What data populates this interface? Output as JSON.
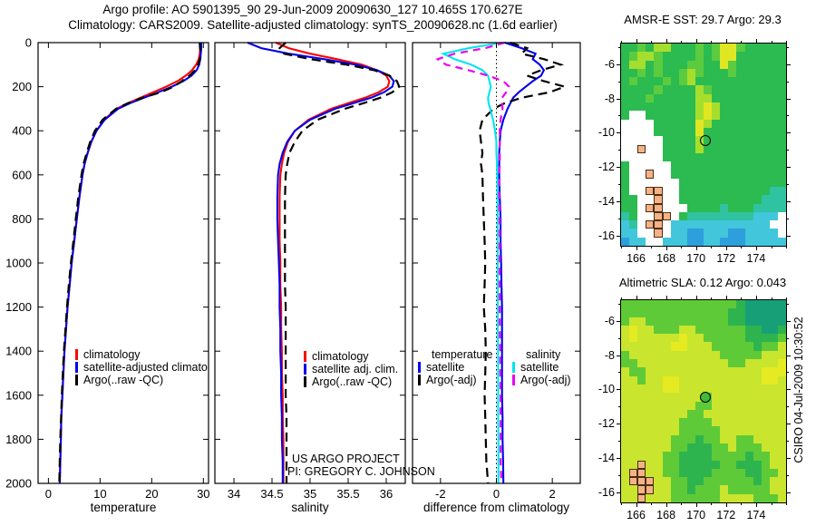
{
  "title": {
    "line1": "Argo profile: AO 5901395_90 29-Jun-2009 20090630_127 10.465S 170.627E",
    "line2": "Climatology: CARS2009. Satellite-adjusted climatology: synTS_20090628.nc (1.6d earlier)"
  },
  "project_text": {
    "line1": "US ARGO PROJECT",
    "line2": "PI: GREGORY C. JOHNSON"
  },
  "watermark": "CSIRO 04-Jul-2009 10:30:52",
  "chart_data": {
    "type": "line",
    "orientation": "vertical-profile",
    "depth_axis": {
      "range": [
        0,
        2000
      ],
      "ticks": [
        0,
        200,
        400,
        600,
        800,
        1000,
        1200,
        1400,
        1600,
        1800,
        2000
      ]
    },
    "depth": [
      0,
      25,
      50,
      75,
      100,
      125,
      150,
      175,
      200,
      225,
      250,
      275,
      300,
      350,
      400,
      450,
      500,
      550,
      600,
      700,
      800,
      900,
      1000,
      1100,
      1200,
      1300,
      1400,
      1500,
      1600,
      1700,
      1800,
      1900,
      2000
    ],
    "panels": [
      {
        "id": "temperature",
        "xlabel": "temperature",
        "xlim": [
          -2,
          31
        ],
        "xticks": [
          0,
          10,
          20,
          30
        ],
        "xtick_labels": [
          "0",
          "10",
          "20",
          "30"
        ],
        "show_depth_labels": true,
        "series": [
          {
            "name": "climatology",
            "color": "#ff0000",
            "dash": "solid",
            "values": [
              29.4,
              29.4,
              29.3,
              29.1,
              28.6,
              27.8,
              26.6,
              25.0,
              22.8,
              20.3,
              17.8,
              15.4,
              13.2,
              10.8,
              9.3,
              8.3,
              7.6,
              7.0,
              6.6,
              6.0,
              5.5,
              5.0,
              4.5,
              4.1,
              3.7,
              3.4,
              3.1,
              2.9,
              2.7,
              2.5,
              2.4,
              2.3,
              2.2
            ]
          },
          {
            "name": "satellite-adjusted climatology",
            "color": "#0000ee",
            "dash": "solid",
            "values": [
              29.6,
              29.6,
              29.5,
              29.4,
              29.2,
              28.7,
              27.7,
              26.1,
              23.9,
              21.3,
              18.5,
              15.8,
              13.5,
              10.9,
              9.3,
              8.3,
              7.6,
              7.0,
              6.6,
              6.0,
              5.5,
              5.0,
              4.5,
              4.1,
              3.7,
              3.4,
              3.1,
              2.9,
              2.7,
              2.5,
              2.4,
              2.3,
              2.2
            ]
          },
          {
            "name": "Argo(..raw -QC)",
            "color": "#000000",
            "dash": "dashed",
            "values": [
              29.3,
              29.35,
              29.55,
              29.3,
              29.0,
              28.4,
              27.3,
              25.8,
              24.2,
              21.8,
              18.2,
              15.4,
              13.1,
              10.5,
              9.0,
              8.1,
              7.4,
              6.8,
              6.4,
              5.8,
              5.3,
              4.85,
              4.35,
              3.95,
              3.6,
              3.3,
              3.0,
              2.8,
              2.6,
              2.45,
              2.3,
              2.2,
              2.1
            ]
          }
        ]
      },
      {
        "id": "salinity",
        "xlabel": "salinity",
        "xlim": [
          33.75,
          36.25
        ],
        "xticks": [
          34,
          34.5,
          35,
          35.5,
          36
        ],
        "xtick_labels": [
          "34",
          "34.5",
          "35",
          "35.5",
          "36"
        ],
        "show_depth_labels": false,
        "series": [
          {
            "name": "climatology",
            "color": "#ff0000",
            "dash": "solid",
            "values": [
              34.55,
              34.72,
              35.0,
              35.35,
              35.68,
              35.88,
              36.0,
              36.04,
              36.02,
              35.9,
              35.72,
              35.5,
              35.28,
              34.98,
              34.8,
              34.71,
              34.66,
              34.63,
              34.61,
              34.6,
              34.6,
              34.6,
              34.61,
              34.61,
              34.62,
              34.62,
              34.63,
              34.63,
              34.64,
              34.64,
              34.65,
              34.65,
              34.65
            ]
          },
          {
            "name": "satellite adj. clim.",
            "color": "#0000ee",
            "dash": "solid",
            "values": [
              34.18,
              34.36,
              34.72,
              35.18,
              35.6,
              35.88,
              36.04,
              36.1,
              36.08,
              35.97,
              35.8,
              35.57,
              35.33,
              35.0,
              34.8,
              34.7,
              34.64,
              34.6,
              34.58,
              34.57,
              34.57,
              34.58,
              34.59,
              34.6,
              34.6,
              34.61,
              34.61,
              34.62,
              34.62,
              34.63,
              34.63,
              34.64,
              34.64
            ]
          },
          {
            "name": "Argo(..raw -QC)",
            "color": "#000000",
            "dash": "dashed",
            "values": [
              34.68,
              34.6,
              34.66,
              35.0,
              35.48,
              35.84,
              36.04,
              36.14,
              36.17,
              36.08,
              35.92,
              35.7,
              35.46,
              35.1,
              34.9,
              34.8,
              34.73,
              34.7,
              34.68,
              34.67,
              34.67,
              34.67,
              34.67,
              34.67,
              34.68,
              34.68,
              34.68,
              34.68,
              34.68,
              34.69,
              34.69,
              34.69,
              34.69
            ]
          }
        ]
      },
      {
        "id": "difference",
        "xlabel": "difference from climatology",
        "xlim": [
          -3,
          3
        ],
        "xticks": [
          -2,
          0,
          2
        ],
        "xtick_labels": [
          "-2",
          "0",
          "2"
        ],
        "show_depth_labels": false,
        "zero_line": true,
        "legend_headers": {
          "temperature": "temperature",
          "salinity": "salinity"
        },
        "series": [
          {
            "name": "satellite",
            "group": "temperature",
            "color": "#0000ee",
            "dash": "solid",
            "values": [
              0.3,
              0.9,
              1.4,
              1.3,
              1.55,
              1.7,
              1.6,
              1.3,
              1.05,
              0.8,
              0.6,
              0.5,
              0.4,
              0.25,
              0.15,
              0.12,
              0.1,
              0.1,
              0.1,
              0.12,
              0.15,
              0.15,
              0.17,
              0.18,
              0.2,
              0.2,
              0.2,
              0.2,
              0.2,
              0.22,
              0.22,
              0.24,
              0.25
            ]
          },
          {
            "name": "Argo(-adj)",
            "group": "temperature",
            "color": "#000000",
            "dash": "dashed",
            "values": [
              0.5,
              1.1,
              0.9,
              1.7,
              2.3,
              1.6,
              1.1,
              1.7,
              2.45,
              1.9,
              0.9,
              0.3,
              -0.1,
              -0.5,
              -0.6,
              -0.55,
              -0.5,
              -0.55,
              -0.5,
              -0.48,
              -0.45,
              -0.42,
              -0.4,
              -0.42,
              -0.45,
              -0.4,
              -0.38,
              -0.4,
              -0.42,
              -0.4,
              -0.38,
              -0.36,
              -0.3
            ]
          },
          {
            "name": "satellite",
            "group": "salinity",
            "color": "#00e5ee",
            "dash": "solid",
            "values": [
              0.2,
              -1.0,
              -1.9,
              -1.5,
              -0.9,
              -0.5,
              -0.3,
              -0.25,
              -0.2,
              -0.25,
              -0.3,
              -0.28,
              -0.22,
              -0.12,
              -0.05,
              0.0,
              0.0,
              0.02,
              0.03,
              0.04,
              0.05,
              0.05,
              0.05,
              0.05,
              0.05,
              0.05,
              0.06,
              0.06,
              0.06,
              0.06,
              0.07,
              0.07,
              0.07
            ]
          },
          {
            "name": "Argo(-adj)",
            "group": "salinity",
            "color": "#ee00ee",
            "dash": "dashed",
            "values": [
              0.3,
              -0.4,
              -1.5,
              -2.1,
              -1.8,
              -1.0,
              -0.3,
              0.25,
              0.45,
              0.35,
              0.2,
              0.2,
              0.22,
              0.15,
              0.12,
              0.12,
              0.12,
              0.12,
              0.1,
              0.1,
              0.12,
              0.12,
              0.12,
              0.12,
              0.12,
              0.12,
              0.14,
              0.14,
              0.15,
              0.15,
              0.15,
              0.15,
              0.18
            ]
          }
        ]
      }
    ]
  },
  "maps": [
    {
      "id": "sst",
      "title": "AMSR-E SST: 29.7 Argo: 29.3",
      "xlim": [
        165,
        176
      ],
      "ylim": [
        -4.8,
        -16.6
      ],
      "xticks": [
        166,
        168,
        170,
        172,
        174
      ],
      "yticks": [
        -6,
        -8,
        -10,
        -12,
        -14,
        -16
      ],
      "marker": {
        "lon": 170.627,
        "lat": -10.465,
        "fill": "transparent"
      },
      "palette": {
        "g": "#2bbb50",
        "h": "#5ccb40",
        "y": "#a6de2d",
        "Y": "#dfe723",
        "t": "#2fc3a2",
        "c": "#41c6db",
        "b": "#2d9fdc",
        "w": "#ffffff",
        "L": "#f5b286"
      },
      "grid": [
        "gghgyyggghghYYhggggg",
        "ghyyhgggghghYYgggggg",
        "gyyghggghhggYhgggggg",
        "gghghgghyhggghgggggg",
        "ghggghghyggggggggggg",
        "gggghggggyhggggggggg",
        "ggghgggggyyggggggggg",
        "gggggggggyYygggggggg",
        "gwwggggggyYygggggggg",
        "wwwwgggggYyggggggggg",
        "wwwwgggggYgggggggggg",
        "wwwwwggggygggggggggg",
        "wwLwwggggygggggggggg",
        "wwwwwggggggggggggggg",
        "gwwwwwgggggggggggggg",
        "gwwLwwgggggggggggggg",
        "gwwwwwwggggggggggggg",
        "gwwLLwwgggggggggggtt",
        "ggwwLwwggggggggggttt",
        "ggwLLwwwggggtgggtttt",
        "tgwwLLwgttttttttcccw",
        "ctwLLwccccccccccccww",
        "ccwwLwccbbcccbbccccw",
        "bccwwcccbbccbbbccccc"
      ]
    },
    {
      "id": "sla",
      "title": "Altimetric SLA: 0.12 Argo: 0.043",
      "xlim": [
        165,
        176
      ],
      "ylim": [
        -4.8,
        -16.6
      ],
      "xticks": [
        166,
        168,
        170,
        172,
        174
      ],
      "yticks": [
        -6,
        -8,
        -10,
        -12,
        -14,
        -16
      ],
      "marker": {
        "lon": 170.627,
        "lat": -10.465,
        "fill": "#43b93a"
      },
      "palette": {
        "y": "#c9e52d",
        "Y": "#e6ea21",
        "g": "#5fca37",
        "G": "#2db44e",
        "T": "#17a078",
        "L": "#f5b286"
      },
      "grid": [
        "ggggggggggggggGTTTTT",
        "gggggggggggggGGTTTTT",
        "gyyggggggggggGGTTTTT",
        "yYyygggyyggggggGGTTG",
        "yYyyyyyYyygggggGGGGg",
        "yyyyyyYYyyygggggGggy",
        "gyyyyyyyyyyygggggyyy",
        "ggyyyyyyyyyyyggyyyyY",
        "yggyyyyyyyyyyyyyyYYY",
        "yygyyYYyyyyyyyyyyYYy",
        "yyyyyYYyyyyyyyyyyyyy",
        "yyyyyyyyyygyyyyyyyyy",
        "yyyyyyyyyggyyyyyyyyy",
        "yyyyyyyyggyyyyyyyyyy",
        "yyyyyyyggggyyyyyyyyy",
        "yyyyyyygggggyyyyyyyy",
        "yyyyyygggGggyyggyyyy",
        "yyyyyyggGGGggygggyyy",
        "yyyyyggGGGGggggGggyy",
        "yyLyyggGGGGGggGGGgyy",
        "yLLyyggGGGGggggGGggy",
        "yLLLyyggGGggggggGgyy",
        "yyLLyyggGgggygggggyy",
        "yyLyyyggggggyyyygggy"
      ]
    }
  ]
}
